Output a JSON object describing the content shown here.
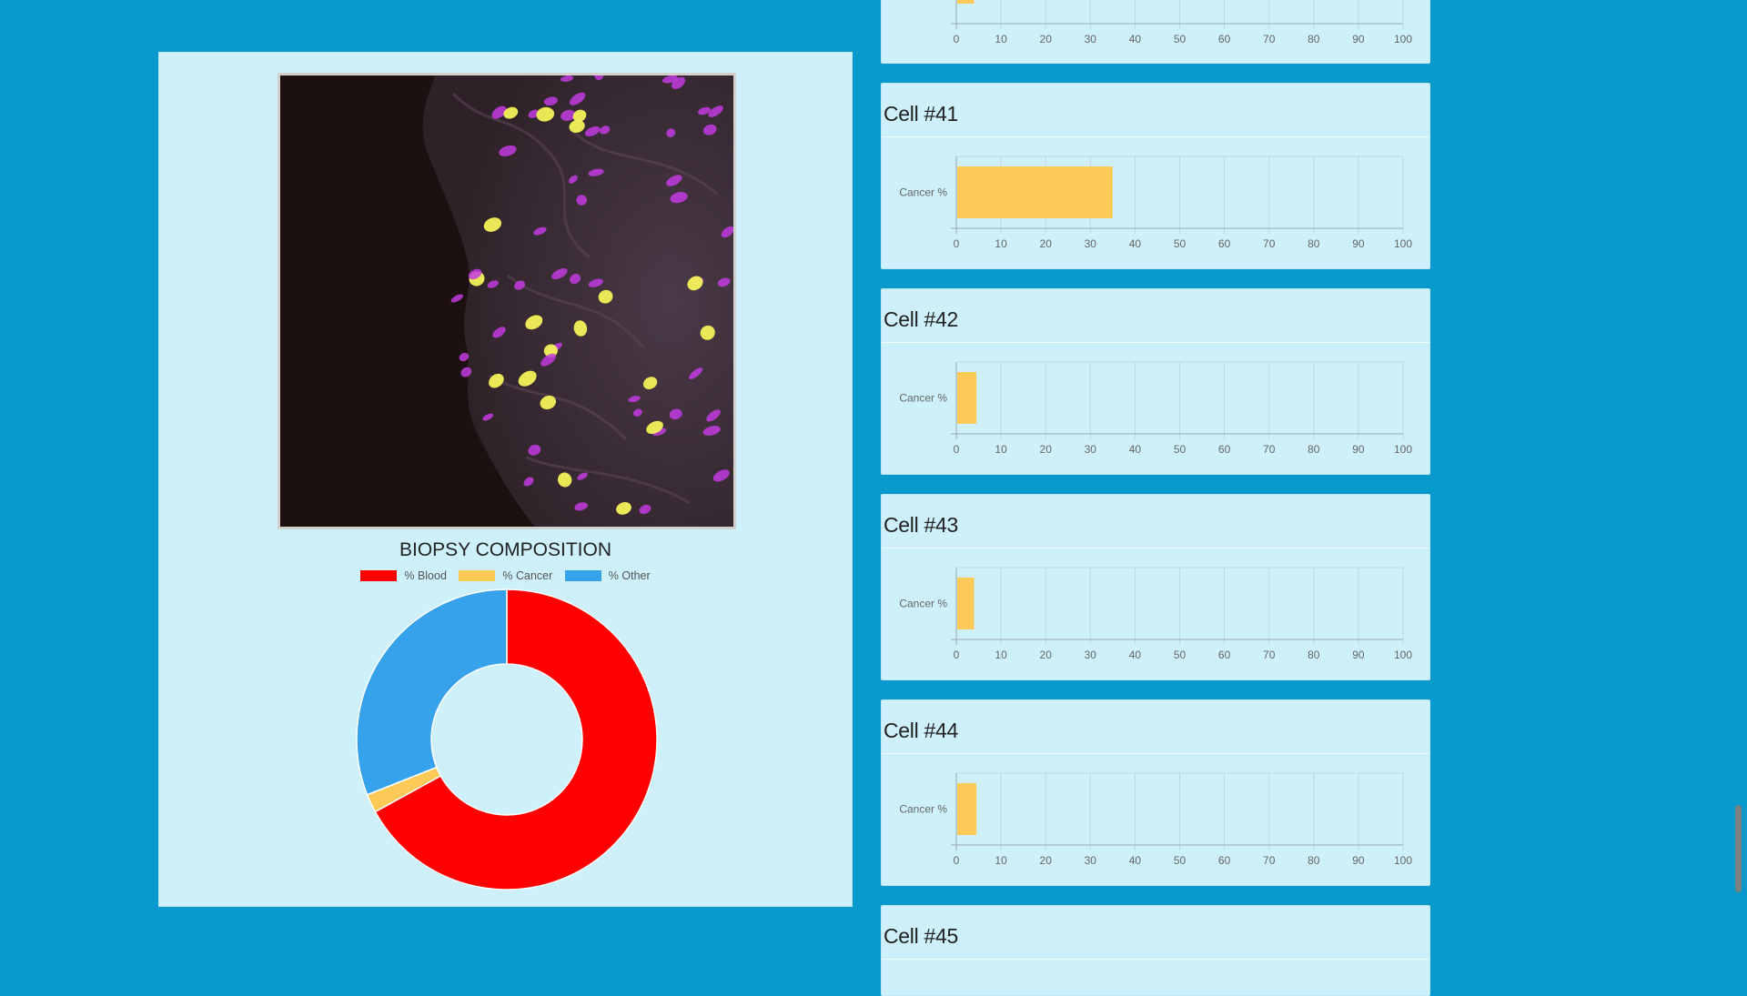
{
  "colors": {
    "background": "#0899cd",
    "panel": "#cdf0fb",
    "blood": "#ff0000",
    "cancer": "#fdca57",
    "other": "#36a2eb"
  },
  "biopsy": {
    "image_icon": "fluorescence-microscopy-image",
    "chart_data": {
      "type": "pie",
      "title": "BIOPSY COMPOSITION",
      "legend_position": "top",
      "labels": [
        "% Blood",
        "% Cancer",
        "% Other"
      ],
      "values": [
        67,
        2,
        31
      ],
      "colors": [
        "#ff0000",
        "#fdca57",
        "#36a2eb"
      ]
    }
  },
  "cells": [
    {
      "title": "",
      "chart_data": {
        "type": "bar",
        "orientation": "horizontal",
        "categories": [
          "Cancer %"
        ],
        "values": [
          4
        ],
        "xlim": [
          0,
          100
        ],
        "xticks": [
          0,
          10,
          20,
          30,
          40,
          50,
          60,
          70,
          80,
          90,
          100
        ],
        "grid": true,
        "partial": "top-cut"
      }
    },
    {
      "title": "Cell #41",
      "chart_data": {
        "type": "bar",
        "orientation": "horizontal",
        "categories": [
          "Cancer %"
        ],
        "values": [
          35
        ],
        "xlim": [
          0,
          100
        ],
        "xticks": [
          0,
          10,
          20,
          30,
          40,
          50,
          60,
          70,
          80,
          90,
          100
        ],
        "grid": true
      }
    },
    {
      "title": "Cell #42",
      "chart_data": {
        "type": "bar",
        "orientation": "horizontal",
        "categories": [
          "Cancer %"
        ],
        "values": [
          4.5
        ],
        "xlim": [
          0,
          100
        ],
        "xticks": [
          0,
          10,
          20,
          30,
          40,
          50,
          60,
          70,
          80,
          90,
          100
        ],
        "grid": true
      }
    },
    {
      "title": "Cell #43",
      "chart_data": {
        "type": "bar",
        "orientation": "horizontal",
        "categories": [
          "Cancer %"
        ],
        "values": [
          4
        ],
        "xlim": [
          0,
          100
        ],
        "xticks": [
          0,
          10,
          20,
          30,
          40,
          50,
          60,
          70,
          80,
          90,
          100
        ],
        "grid": true
      }
    },
    {
      "title": "Cell #44",
      "chart_data": {
        "type": "bar",
        "orientation": "horizontal",
        "categories": [
          "Cancer %"
        ],
        "values": [
          4.5
        ],
        "xlim": [
          0,
          100
        ],
        "xticks": [
          0,
          10,
          20,
          30,
          40,
          50,
          60,
          70,
          80,
          90,
          100
        ],
        "grid": true
      }
    },
    {
      "title": "Cell #45",
      "chart_data": null
    }
  ]
}
